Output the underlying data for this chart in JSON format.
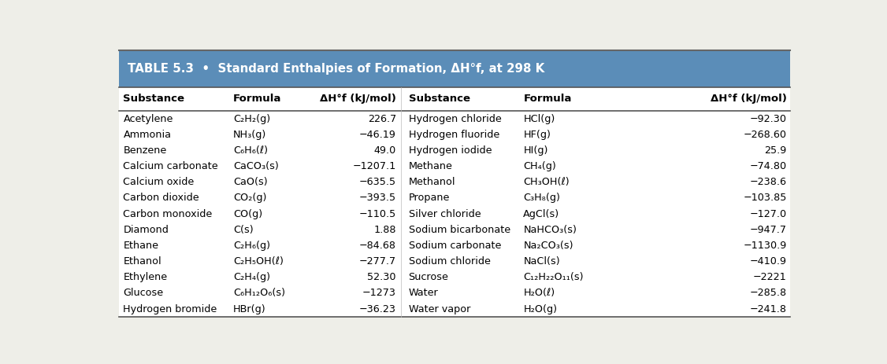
{
  "title": "TABLE 5.3  •  Standard Enthalpies of Formation, ΔH°f, at 298 K",
  "header_bg": "#4a7fa5",
  "header_text_color": "#ffffff",
  "col_headers": [
    "Substance",
    "Formula",
    "ΔH°f (kJ/mol)",
    "Substance",
    "Formula",
    "ΔH°f (kJ/mol)"
  ],
  "rows": [
    [
      "Acetylene",
      "C₂H₂(g)",
      "226.7",
      "Hydrogen chloride",
      "HCl(g)",
      "−92.30"
    ],
    [
      "Ammonia",
      "NH₃(g)",
      "−46.19",
      "Hydrogen fluoride",
      "HF(g)",
      "−268.60"
    ],
    [
      "Benzene",
      "C₆H₆(ℓ)",
      "49.0",
      "Hydrogen iodide",
      "HI(g)",
      "25.9"
    ],
    [
      "Calcium carbonate",
      "CaCO₃(s)",
      "−1207.1",
      "Methane",
      "CH₄(g)",
      "−74.80"
    ],
    [
      "Calcium oxide",
      "CaO(s)",
      "−635.5",
      "Methanol",
      "CH₃OH(ℓ)",
      "−238.6"
    ],
    [
      "Carbon dioxide",
      "CO₂(g)",
      "−393.5",
      "Propane",
      "C₃H₈(g)",
      "−103.85"
    ],
    [
      "Carbon monoxide",
      "CO(g)",
      "−110.5",
      "Silver chloride",
      "AgCl(s)",
      "−127.0"
    ],
    [
      "Diamond",
      "C(s)",
      "1.88",
      "Sodium bicarbonate",
      "NaHCO₃(s)",
      "−947.7"
    ],
    [
      "Ethane",
      "C₂H₆(g)",
      "−84.68",
      "Sodium carbonate",
      "Na₂CO₃(s)",
      "−1130.9"
    ],
    [
      "Ethanol",
      "C₂H₅OH(ℓ)",
      "−277.7",
      "Sodium chloride",
      "NaCl(s)",
      "−410.9"
    ],
    [
      "Ethylene",
      "C₂H₄(g)",
      "52.30",
      "Sucrose",
      "C₁₂H₂₂O₁₁(s)",
      "−2221"
    ],
    [
      "Glucose",
      "C₆H₁₂O₆(s)",
      "−1273",
      "Water",
      "H₂O(ℓ)",
      "−285.8"
    ],
    [
      "Hydrogen bromide",
      "HBr(g)",
      "−36.23",
      "Water vapor",
      "H₂O(g)",
      "−241.8"
    ]
  ],
  "col_aligns": [
    "left",
    "left",
    "right",
    "left",
    "left",
    "right"
  ],
  "fig_bg": "#eeeee8",
  "header_row_bg": "#5b8db8",
  "font_size": 9.2,
  "header_font_size": 9.5,
  "title_font_size": 10.8
}
